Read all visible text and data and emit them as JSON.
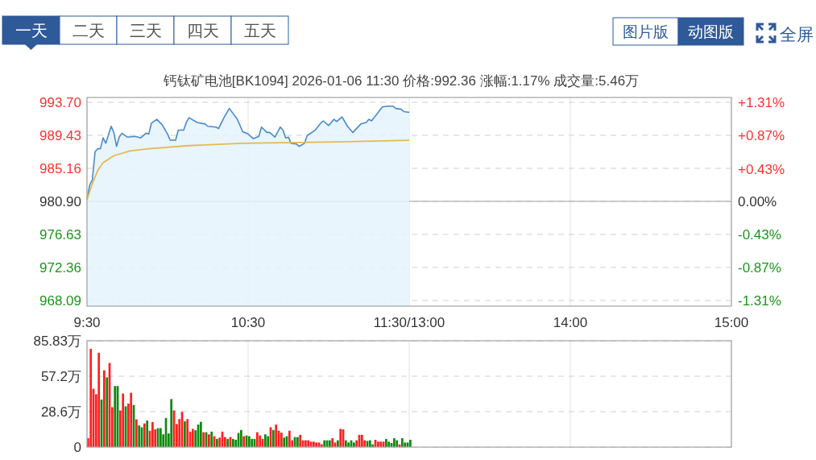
{
  "chart_data": [
    {
      "type": "other",
      "annotations": [
        "一天",
        "二天",
        "三天",
        "四天",
        "五天",
        "图片版",
        "动图版",
        "全屏"
      ]
    },
    {
      "type": "line",
      "title": "钙钛矿电池[BK1094]  2026-01-06 11:30  价格:992.36  涨幅:1.17%  成交量:5.46万",
      "categories": [
        "9:30",
        null,
        null,
        null,
        null,
        null,
        null,
        null,
        null,
        null,
        null,
        null,
        null,
        null,
        null,
        null,
        null,
        null,
        null,
        null,
        null,
        null,
        null,
        null,
        null,
        null,
        null,
        null,
        null,
        null,
        null,
        null,
        null,
        null,
        null,
        null,
        null,
        null,
        null,
        null,
        null,
        null,
        null,
        null,
        null,
        null,
        null,
        null,
        null,
        null,
        null,
        null,
        null,
        null,
        null,
        null,
        null,
        null,
        null,
        null,
        "10:30",
        null,
        null,
        null,
        null,
        null,
        null,
        null,
        null,
        null,
        null,
        null,
        null,
        null,
        null,
        null,
        null,
        null,
        null,
        null,
        null,
        null,
        null,
        null,
        null,
        null,
        null,
        null,
        null,
        null,
        null,
        null,
        null,
        null,
        null,
        null,
        null,
        null,
        null,
        null,
        null,
        null,
        null,
        null,
        null,
        null,
        null,
        null,
        null,
        null,
        null,
        null,
        null,
        null,
        null,
        null,
        null,
        null,
        null,
        null,
        "11:30/13:00",
        null,
        null,
        null,
        null,
        null,
        null,
        null,
        null,
        null,
        null,
        null,
        null,
        null,
        null,
        null,
        null,
        null,
        null,
        null,
        null,
        null,
        null,
        null,
        null,
        null,
        null,
        null,
        null,
        null,
        null,
        null,
        null,
        null,
        null,
        null,
        null,
        null,
        null,
        null,
        null,
        null,
        null,
        null,
        null,
        null,
        null,
        null,
        null,
        null,
        null,
        null,
        null,
        null,
        null,
        null,
        null,
        null,
        null,
        null,
        "14:00",
        null,
        null,
        null,
        null,
        null,
        null,
        null,
        null,
        null,
        null,
        null,
        null,
        null,
        null,
        null,
        null,
        null,
        null,
        null,
        null,
        null,
        null,
        null,
        null,
        null,
        null,
        null,
        null,
        null,
        null,
        null,
        null,
        null,
        null,
        null,
        null,
        null,
        null,
        null,
        null,
        null,
        null,
        null,
        null,
        null,
        null,
        null,
        null,
        null,
        null,
        null,
        null,
        null,
        null,
        null,
        null,
        null,
        null,
        null,
        "15:00"
      ],
      "ylim": [
        967.36,
        994.32
      ],
      "yticks": [
        {
          "value": 968.09,
          "label": "968.09"
        },
        {
          "value": 972.36,
          "label": "972.36"
        },
        {
          "value": 976.63,
          "label": "976.63"
        },
        {
          "value": 980.9,
          "label": "980.90"
        },
        {
          "value": 985.16,
          "label": "985.16"
        },
        {
          "value": 989.43,
          "label": "989.43"
        },
        {
          "value": 993.7,
          "label": "993.70"
        }
      ],
      "y2lim": [
        -1.38,
        1.37
      ],
      "y2ticks": [
        {
          "value": -1.31,
          "label": "-1.31%"
        },
        {
          "value": -0.87,
          "label": "-0.87%"
        },
        {
          "value": -0.43,
          "label": "-0.43%"
        },
        {
          "value": 0,
          "label": "0.00%"
        },
        {
          "value": 0.43,
          "label": "+0.43%"
        },
        {
          "value": 0.87,
          "label": "+0.87%"
        },
        {
          "value": 1.31,
          "label": "+1.31%"
        }
      ],
      "grid": true,
      "ref_lines": [
        {
          "axis": "y",
          "value": 980.9,
          "color": "#b0b0b0"
        }
      ],
      "series": [
        {
          "type": "area",
          "color": "#4a89c9",
          "values": [
            981.1,
            983.0,
            983.7,
            987.3,
            987.7,
            987.7,
            989.1,
            988.4,
            null,
            990.6,
            989.8,
            988.0,
            989.2,
            989.7,
            null,
            989.2,
            null,
            null,
            989.3,
            null,
            989.1,
            null,
            989.7,
            989.6,
            991.0,
            null,
            991.5,
            null,
            990.8,
            null,
            989.6,
            988.8,
            null,
            988.8,
            990.1,
            null,
            990.1,
            991.1,
            991.7,
            null,
            null,
            991.1,
            null,
            null,
            990.9,
            990.6,
            null,
            null,
            990.5,
            990.3,
            null,
            991.7,
            null,
            992.9,
            null,
            null,
            991.5,
            null,
            989.9,
            null,
            989.6,
            null,
            989.0,
            null,
            989.3,
            990.5,
            null,
            989.8,
            989.8,
            null,
            989.2,
            null,
            990.5,
            990.1,
            989.1,
            989.2,
            988.4,
            null,
            988.3,
            988.0,
            null,
            988.4,
            989.4,
            null,
            null,
            990.1,
            null,
            991.0,
            991.3,
            null,
            990.7,
            null,
            991.5,
            991.2,
            null,
            991.8,
            null,
            990.6,
            null,
            989.8,
            null,
            null,
            990.9,
            null,
            991.1,
            991.5,
            991.3,
            null,
            null,
            null,
            993.1,
            null,
            993.2,
            null,
            993.2,
            992.9,
            null,
            992.8,
            992.5,
            null,
            992.4,
            null,
            null,
            null,
            null,
            null,
            null,
            null,
            null,
            null,
            null,
            null,
            null,
            null,
            null,
            null,
            null,
            null,
            null,
            null,
            null,
            null,
            null,
            null,
            null,
            null,
            null,
            null,
            null,
            null,
            null,
            null,
            null,
            null,
            null,
            null,
            null,
            null,
            null,
            null,
            null,
            null,
            null,
            null,
            null,
            null,
            null,
            null,
            null,
            null,
            null,
            null,
            null,
            null,
            null,
            null,
            null,
            null,
            null,
            null,
            null,
            null,
            null,
            null,
            null,
            null,
            null,
            null,
            null,
            null,
            null,
            null,
            null,
            null,
            null,
            null,
            null,
            null,
            null,
            null,
            null,
            null,
            null,
            null,
            null,
            null,
            null,
            null,
            null,
            null,
            null,
            null,
            null,
            null,
            null,
            null,
            null,
            null,
            null,
            null,
            null,
            null,
            null,
            null,
            null,
            null,
            null,
            null,
            null,
            null,
            null,
            null,
            null,
            null,
            null,
            null,
            null,
            null,
            null,
            null,
            null
          ]
        },
        {
          "type": "line",
          "color": "#e5b94e",
          "values": [
            981.1,
            null,
            983.2,
            null,
            984.9,
            null,
            985.9,
            null,
            null,
            null,
            986.8,
            null,
            null,
            null,
            null,
            null,
            987.4,
            null,
            null,
            null,
            null,
            null,
            null,
            987.7,
            null,
            null,
            null,
            null,
            null,
            null,
            null,
            null,
            null,
            null,
            null,
            null,
            null,
            null,
            988.1,
            null,
            null,
            null,
            null,
            null,
            null,
            null,
            null,
            null,
            null,
            null,
            null,
            null,
            null,
            null,
            null,
            null,
            null,
            null,
            988.4,
            null,
            null,
            null,
            null,
            null,
            null,
            null,
            null,
            null,
            null,
            null,
            null,
            null,
            null,
            null,
            null,
            null,
            null,
            null,
            988.5,
            null,
            null,
            null,
            null,
            null,
            null,
            null,
            null,
            null,
            null,
            null,
            null,
            null,
            null,
            null,
            null,
            null,
            null,
            988.6,
            null,
            null,
            null,
            null,
            null,
            null,
            null,
            null,
            null,
            null,
            null,
            null,
            null,
            null,
            null,
            null,
            null,
            null,
            null,
            null,
            null,
            null,
            988.8,
            null,
            null,
            null,
            null,
            null,
            null,
            null,
            null,
            null,
            null,
            null,
            null,
            null,
            null,
            null,
            null,
            null,
            null,
            null,
            null,
            null,
            null,
            null,
            null,
            null,
            null,
            null,
            null,
            null,
            null,
            null,
            null,
            null,
            null,
            null,
            null,
            null,
            null,
            null,
            null,
            null,
            null,
            null,
            null,
            null,
            null,
            null,
            null,
            null,
            null,
            null,
            null,
            null,
            null,
            null,
            null,
            null,
            null,
            null,
            null,
            null,
            null,
            null,
            null,
            null,
            null,
            null,
            null,
            null,
            null,
            null,
            null,
            null,
            null,
            null,
            null,
            null,
            null,
            null,
            null,
            null,
            null,
            null,
            null,
            null,
            null,
            null,
            null,
            null,
            null,
            null,
            null,
            null,
            null,
            null,
            null,
            null,
            null,
            null,
            null,
            null,
            null,
            null,
            null,
            null,
            null,
            null,
            null,
            null,
            null,
            null,
            null,
            null,
            null,
            null,
            null,
            null,
            null,
            null,
            null
          ]
        }
      ]
    },
    {
      "type": "bar",
      "tick_labels": "y",
      "grid": true,
      "ylim": [
        0,
        85.83
      ],
      "yticks": [
        0,
        {
          "value": 28.6,
          "label": "28.6万"
        },
        {
          "value": 57.2,
          "label": "57.2万"
        },
        {
          "value": 85.83,
          "label": "85.83万"
        }
      ],
      "values": [
        7.2,
        79.3,
        47.1,
        42.7,
        76.1,
        38.4,
        62.0,
        56.3,
        67.9,
        32.2,
        49.3,
        49.3,
        29.6,
        43.2,
        32.9,
        35.1,
        43.8,
        34.0,
        22.4,
        17.5,
        16.0,
        19.1,
        21.5,
        13.2,
        20.2,
        14.3,
        15.3,
        15.3,
        10.3,
        23.5,
        11.0,
        38.8,
        29.6,
        18.6,
        22.6,
        28.5,
        20.8,
        22.6,
        12.5,
        14.7,
        13.6,
        18.2,
        20.4,
        12.0,
        12.0,
        10.3,
        12.5,
        8.8,
        6.6,
        7.7,
        12.5,
        8.1,
        6.6,
        8.1,
        6.6,
        5.9,
        11.4,
        13.8,
        8.8,
        9.4,
        8.8,
        6.6,
        6.6,
        12.0,
        9.4,
        6.6,
        10.3,
        8.8,
        16.0,
        13.8,
        18.2,
        13.2,
        11.6,
        7.7,
        8.8,
        13.2,
        5.5,
        8.1,
        8.1,
        9.9,
        5.5,
        5.5,
        5.5,
        4.4,
        4.4,
        3.7,
        3.7,
        2.2,
        5.5,
        5.5,
        5.5,
        7.2,
        3.7,
        5.5,
        14.7,
        14.3,
        5.5,
        3.7,
        5.5,
        3.7,
        5.5,
        9.9,
        9.9,
        5.5,
        5.0,
        5.5,
        2.2,
        5.9,
        4.4,
        4.4,
        4.4,
        6.6,
        4.4,
        3.3,
        7.2,
        5.5,
        2.2,
        7.2,
        3.7,
        3.7,
        5.9,
        null,
        null,
        null,
        null,
        null,
        null,
        null,
        null,
        null,
        null,
        null,
        null,
        null,
        null,
        null,
        null,
        null,
        null,
        null,
        null,
        null,
        null,
        null,
        null,
        null,
        null,
        null,
        null,
        null,
        null,
        null,
        null,
        null,
        null,
        null,
        null,
        null,
        null,
        null,
        null,
        null,
        null,
        null,
        null,
        null,
        null,
        null,
        null,
        null,
        null,
        null,
        null,
        null,
        null,
        null,
        null,
        null,
        null,
        null,
        null,
        null,
        null,
        null,
        null,
        null,
        null,
        null,
        null,
        null,
        null,
        null,
        null,
        null,
        null,
        null,
        null,
        null,
        null,
        null,
        null,
        null,
        null,
        null,
        null,
        null,
        null,
        null,
        null,
        null,
        null,
        null,
        null,
        null,
        null,
        null,
        null,
        null,
        null,
        null,
        null,
        null,
        null,
        null,
        null,
        null,
        null,
        null,
        null,
        null,
        null,
        null,
        null,
        null,
        null,
        null,
        null,
        null,
        null,
        null,
        null
      ],
      "colors": [
        "#ff2020",
        "#ff2020",
        "#ff2020",
        "#ff2020",
        "#ff2020",
        "#108a10",
        "#ff2020",
        "#108a10",
        "#ff2020",
        "#ff2020",
        "#108a10",
        "#108a10",
        "#ff2020",
        "#ff2020",
        "#108a10",
        "#ff2020",
        "#ff2020",
        "#108a10",
        "#ff2020",
        "#108a10",
        "#108a10",
        "#ff2020",
        "#108a10",
        "#ff2020",
        "#ff2020",
        "#ff2020",
        "#108a10",
        "#108a10",
        "#108a10",
        "#108a10",
        "#108a10",
        "#108a10",
        "#ff2020",
        "#ff2020",
        "#ff2020",
        "#ff2020",
        "#108a10",
        "#ff2020",
        "#ff2020",
        "#ff2020",
        "#108a10",
        "#108a10",
        "#108a10",
        "#ff2020",
        "#108a10",
        "#ff2020",
        "#108a10",
        "#ff2020",
        "#108a10",
        "#ff2020",
        "#ff2020",
        "#ff2020",
        "#108a10",
        "#ff2020",
        "#108a10",
        "#108a10",
        "#108a10",
        "#108a10",
        "#ff2020",
        "#108a10",
        "#108a10",
        "#108a10",
        "#108a10",
        "#ff2020",
        "#ff2020",
        "#ff2020",
        "#108a10",
        "#108a10",
        "#ff2020",
        "#108a10",
        "#ff2020",
        "#ff2020",
        "#ff2020",
        "#108a10",
        "#108a10",
        "#ff2020",
        "#ff2020",
        "#108a10",
        "#108a10",
        "#ff2020",
        "#ff2020",
        "#ff2020",
        "#ff2020",
        "#ff2020",
        "#ff2020",
        "#ff2020",
        "#ff2020",
        "#ff2020",
        "#108a10",
        "#108a10",
        "#108a10",
        "#ff2020",
        "#ff2020",
        "#108a10",
        "#ff2020",
        "#ff2020",
        "#108a10",
        "#108a10",
        "#108a10",
        "#108a10",
        "#ff2020",
        "#ff2020",
        "#ff2020",
        "#ff2020",
        "#108a10",
        "#108a10",
        "#108a10",
        "#ff2020",
        "#ff2020",
        "#ff2020",
        "#ff2020",
        "#108a10",
        "#108a10",
        "#108a10",
        "#108a10",
        "#108a10",
        "#ff2020",
        "#108a10",
        "#108a10",
        "#108a10",
        "#108a10",
        null,
        null,
        null,
        null,
        null,
        null,
        null,
        null,
        null,
        null,
        null,
        null,
        null,
        null,
        null,
        null,
        null,
        null,
        null,
        null,
        null,
        null,
        null,
        null,
        null,
        null,
        null,
        null,
        null,
        null,
        null,
        null,
        null,
        null,
        null,
        null,
        null,
        null,
        null,
        null,
        null,
        null,
        null,
        null,
        null,
        null,
        null,
        null,
        null,
        null,
        null,
        null,
        null,
        null,
        null,
        null,
        null,
        null,
        null,
        null,
        null,
        null,
        null,
        null,
        null,
        null,
        null,
        null,
        null,
        null,
        null,
        null,
        null,
        null,
        null,
        null,
        null,
        null,
        null,
        null,
        null,
        null,
        null,
        null,
        null,
        null,
        null,
        null,
        null,
        null,
        null,
        null,
        null,
        null,
        null,
        null,
        null,
        null,
        null,
        null,
        null,
        null,
        null,
        null,
        null,
        null,
        null,
        null,
        null,
        null,
        null,
        null,
        null,
        null,
        null,
        null,
        null,
        null,
        null,
        null
      ]
    }
  ]
}
